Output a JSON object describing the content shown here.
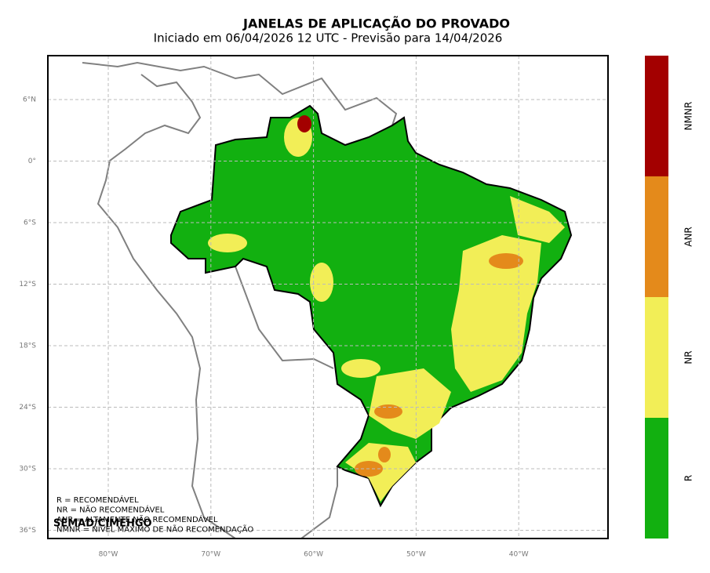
{
  "header": {
    "title": "JANELAS DE APLICAÇÃO DO PROVADO",
    "subtitle": "Iniciado em 06/04/2026 12 UTC - Previsão para 14/04/2026"
  },
  "map": {
    "lat_labels": [
      "6°N",
      "0°",
      "6°S",
      "12°S",
      "18°S",
      "24°S",
      "30°S",
      "36°S"
    ],
    "lon_labels": [
      "80°W",
      "70°W",
      "60°W",
      "50°W",
      "40°W"
    ]
  },
  "colorbar": [
    {
      "label": "NMNR",
      "color": "#a30000"
    },
    {
      "label": "ANR",
      "color": "#e48a1b"
    },
    {
      "label": "NR",
      "color": "#f2ee57"
    },
    {
      "label": "R",
      "color": "#12b010"
    }
  ],
  "notes": [
    "R = RECOMENDÁVEL",
    "NR = NÃO RECOMENDÁVEL",
    "ANR = ALTAMENTE NÃO RECOMENDÁVEL",
    "NMNR = NÍVEL MÁXIMO DE NÃO RECOMENDAÇÃO"
  ],
  "credit": "SEMAD/CIMEHGO"
}
